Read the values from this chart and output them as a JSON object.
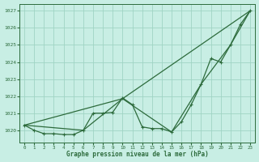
{
  "title": "Graphe pression niveau de la mer (hPa)",
  "background_color": "#c8eee4",
  "grid_color": "#a0d4c4",
  "line_color": "#2d6b3c",
  "marker_color": "#2d6b3c",
  "xlim": [
    -0.5,
    23.5
  ],
  "ylim": [
    1019.3,
    1027.4
  ],
  "yticks": [
    1020,
    1021,
    1022,
    1023,
    1024,
    1025,
    1026,
    1027
  ],
  "xticks": [
    0,
    1,
    2,
    3,
    4,
    5,
    6,
    7,
    8,
    9,
    10,
    11,
    12,
    13,
    14,
    15,
    16,
    17,
    18,
    19,
    20,
    21,
    22,
    23
  ],
  "series1_x": [
    0,
    1,
    2,
    3,
    4,
    5,
    6,
    7,
    8,
    9,
    10,
    11,
    12,
    13,
    14,
    15,
    16,
    17,
    18,
    19,
    20,
    21,
    22,
    23
  ],
  "series1_y": [
    1020.3,
    1020.0,
    1019.8,
    1019.8,
    1019.75,
    1019.75,
    1020.0,
    1021.0,
    1021.0,
    1021.05,
    1021.9,
    1021.5,
    1020.2,
    1020.1,
    1020.1,
    1019.9,
    1020.5,
    1021.5,
    1022.7,
    1024.2,
    1024.0,
    1025.0,
    1026.2,
    1027.0
  ],
  "series2_x": [
    0,
    6,
    10,
    15,
    18,
    21,
    23
  ],
  "series2_y": [
    1020.3,
    1020.0,
    1021.85,
    1019.9,
    1022.7,
    1025.0,
    1027.0
  ],
  "series3_x": [
    0,
    10,
    23
  ],
  "series3_y": [
    1020.3,
    1021.85,
    1027.0
  ]
}
